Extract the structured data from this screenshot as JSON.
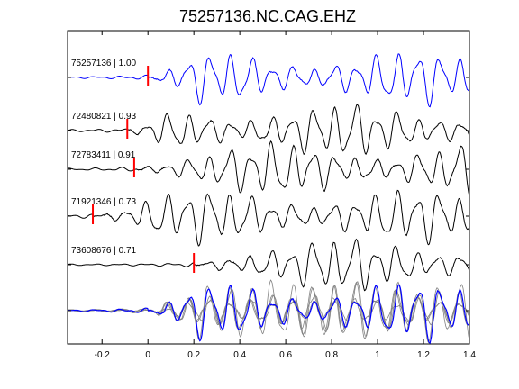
{
  "chart_data": {
    "type": "line",
    "title": "75257136.NC.CAG.EHZ",
    "xlabel": "",
    "ylabel": "",
    "xlim": [
      -0.35,
      1.4
    ],
    "xticks": [
      -0.2,
      0,
      0.2,
      0.4,
      0.6,
      0.8,
      1,
      1.2,
      1.4
    ],
    "xtick_labels": [
      "-0.2",
      "0",
      "0.2",
      "0.4",
      "0.6",
      "0.8",
      "1",
      "1.2",
      "1.4"
    ],
    "grid": false,
    "legend": "none",
    "traces": [
      {
        "label": "75257136 | 1.00",
        "event_id": "75257136",
        "correlation": 1.0,
        "pick_time": 0.0,
        "color": "#0000ff"
      },
      {
        "label": "72480821 | 0.93",
        "event_id": "72480821",
        "correlation": 0.93,
        "pick_time": -0.09,
        "color": "#000000"
      },
      {
        "label": "72783411 | 0.91",
        "event_id": "72783411",
        "correlation": 0.91,
        "pick_time": -0.06,
        "color": "#000000"
      },
      {
        "label": "71921346 | 0.73",
        "event_id": "71921346",
        "correlation": 0.73,
        "pick_time": -0.24,
        "color": "#000000"
      },
      {
        "label": "73608676 | 0.71",
        "event_id": "73608676",
        "correlation": 0.71,
        "pick_time": 0.2,
        "color": "#000000"
      }
    ],
    "stack": {
      "colors": [
        "#808080",
        "#0000ff"
      ]
    },
    "pick_color": "#ff0000"
  }
}
